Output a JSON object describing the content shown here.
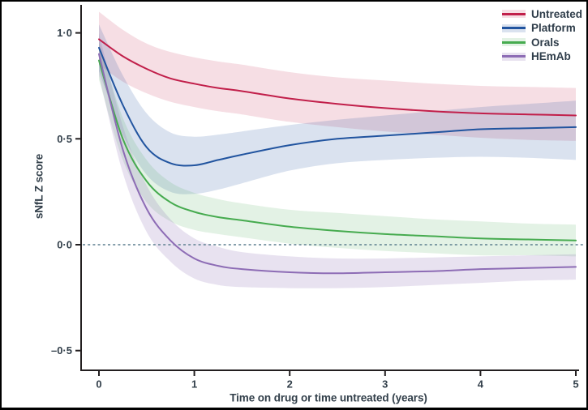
{
  "figure": {
    "frame_color": "#000000",
    "background": "#ffffff",
    "text_color": "#323f4a",
    "axis_color": "#231f20"
  },
  "chart_data": {
    "type": "line",
    "title": "",
    "xlabel": "Time on drug or time untreated (years)",
    "ylabel": "sNfL Z score",
    "xlim": [
      -0.2,
      5.05
    ],
    "ylim": [
      -0.59,
      1.13
    ],
    "grid": false,
    "legend_position": "top-right",
    "x_ticks": [
      {
        "value": 0,
        "label": "0"
      },
      {
        "value": 1,
        "label": "1"
      },
      {
        "value": 2,
        "label": "2"
      },
      {
        "value": 3,
        "label": "3"
      },
      {
        "value": 4,
        "label": "4"
      },
      {
        "value": 5,
        "label": "5"
      }
    ],
    "y_ticks": [
      {
        "value": 1.0,
        "label": "1·0"
      },
      {
        "value": 0.5,
        "label": "0·5"
      },
      {
        "value": 0.0,
        "label": "0·0"
      },
      {
        "value": -0.5,
        "label": "–0·5"
      }
    ],
    "zero_line": {
      "value": 0,
      "style": "dashed",
      "color": "#5d7f8f"
    },
    "x": [
      0,
      0.25,
      0.5,
      0.75,
      1,
      1.25,
      1.5,
      2,
      2.5,
      3,
      3.5,
      4,
      4.5,
      5
    ],
    "series": [
      {
        "name": "Untreated",
        "color": "#c11f4a",
        "band_color": "rgba(193,31,74,0.15)",
        "mean": [
          0.97,
          0.89,
          0.83,
          0.785,
          0.76,
          0.74,
          0.725,
          0.69,
          0.665,
          0.645,
          0.63,
          0.62,
          0.615,
          0.61
        ],
        "upper": [
          1.1,
          1.015,
          0.95,
          0.91,
          0.885,
          0.865,
          0.85,
          0.815,
          0.79,
          0.775,
          0.76,
          0.75,
          0.745,
          0.74
        ],
        "lower": [
          0.85,
          0.77,
          0.715,
          0.675,
          0.65,
          0.63,
          0.615,
          0.58,
          0.555,
          0.535,
          0.52,
          0.505,
          0.495,
          0.49
        ]
      },
      {
        "name": "Platform",
        "color": "#21549f",
        "band_color": "rgba(33,84,159,0.17)",
        "mean": [
          0.93,
          0.66,
          0.46,
          0.385,
          0.375,
          0.4,
          0.425,
          0.47,
          0.5,
          0.515,
          0.53,
          0.545,
          0.55,
          0.555
        ],
        "upper": [
          1.04,
          0.8,
          0.62,
          0.53,
          0.51,
          0.52,
          0.535,
          0.565,
          0.59,
          0.61,
          0.63,
          0.65,
          0.665,
          0.68
        ],
        "lower": [
          0.82,
          0.52,
          0.33,
          0.25,
          0.24,
          0.26,
          0.29,
          0.35,
          0.385,
          0.4,
          0.41,
          0.415,
          0.41,
          0.4
        ]
      },
      {
        "name": "Orals",
        "color": "#46ab4f",
        "band_color": "rgba(70,171,79,0.15)",
        "mean": [
          0.87,
          0.5,
          0.3,
          0.2,
          0.155,
          0.13,
          0.115,
          0.085,
          0.065,
          0.05,
          0.04,
          0.03,
          0.025,
          0.02
        ],
        "upper": [
          0.96,
          0.6,
          0.4,
          0.295,
          0.245,
          0.215,
          0.195,
          0.165,
          0.15,
          0.135,
          0.12,
          0.11,
          0.1,
          0.095
        ],
        "lower": [
          0.78,
          0.4,
          0.2,
          0.11,
          0.07,
          0.05,
          0.035,
          0.005,
          -0.015,
          -0.03,
          -0.04,
          -0.05,
          -0.05,
          -0.055
        ]
      },
      {
        "name": "HEmAb",
        "color": "#8d6cb5",
        "band_color": "rgba(141,108,181,0.20)",
        "mean": [
          0.9,
          0.45,
          0.17,
          0.02,
          -0.065,
          -0.1,
          -0.115,
          -0.13,
          -0.135,
          -0.13,
          -0.125,
          -0.115,
          -0.11,
          -0.105
        ],
        "upper": [
          1.0,
          0.56,
          0.28,
          0.12,
          0.03,
          -0.01,
          -0.035,
          -0.055,
          -0.065,
          -0.065,
          -0.06,
          -0.055,
          -0.05,
          -0.045
        ],
        "lower": [
          0.8,
          0.34,
          0.06,
          -0.08,
          -0.16,
          -0.19,
          -0.2,
          -0.205,
          -0.205,
          -0.2,
          -0.19,
          -0.18,
          -0.17,
          -0.165
        ]
      }
    ]
  }
}
